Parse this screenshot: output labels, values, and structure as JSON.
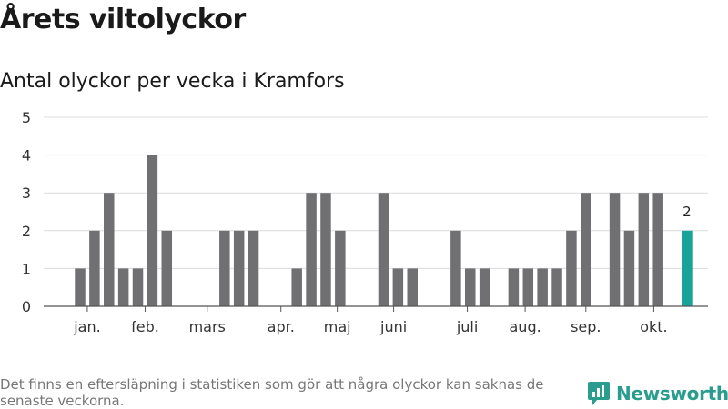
{
  "title": "Årets viltolyckor",
  "subtitle": "Antal olyckor per vecka i Kramfors",
  "footnote": "Det finns en eftersläpning i statistiken som gör att några olyckor kan saknas de senaste veckorna.",
  "brand": {
    "name": "Newsworthy",
    "color": "#2a9d8f"
  },
  "colors": {
    "bar": "#707073",
    "highlight": "#17a39a",
    "grid": "#dcdcdc",
    "axis": "#555555"
  },
  "chart_data": {
    "type": "bar",
    "title": "Antal olyckor per vecka i Kramfors",
    "xlabel": "",
    "ylabel": "",
    "ylim": [
      0,
      5
    ],
    "yticks": [
      0,
      1,
      2,
      3,
      4,
      5
    ],
    "weeks": [
      1,
      2,
      3,
      4,
      5,
      6,
      7,
      8,
      9,
      10,
      11,
      12,
      13,
      14,
      15,
      16,
      17,
      18,
      19,
      20,
      21,
      22,
      23,
      24,
      25,
      26,
      27,
      28,
      29,
      30,
      31,
      32,
      33,
      34,
      35,
      36,
      37,
      38,
      39,
      40,
      41,
      42,
      43
    ],
    "values": [
      1,
      2,
      3,
      1,
      1,
      4,
      2,
      0,
      0,
      0,
      2,
      2,
      2,
      0,
      0,
      1,
      3,
      3,
      2,
      0,
      0,
      3,
      1,
      1,
      0,
      0,
      2,
      1,
      1,
      0,
      1,
      1,
      1,
      1,
      2,
      3,
      0,
      3,
      2,
      3,
      3,
      0,
      2
    ],
    "highlight_index": 42,
    "highlight_label": "2",
    "month_labels": [
      {
        "label": "jan.",
        "week": 1.5
      },
      {
        "label": "feb.",
        "week": 5.5
      },
      {
        "label": "mars",
        "week": 9.8
      },
      {
        "label": "apr.",
        "week": 14.9
      },
      {
        "label": "maj",
        "week": 18.8
      },
      {
        "label": "juni",
        "week": 22.7
      },
      {
        "label": "juli",
        "week": 27.8
      },
      {
        "label": "aug.",
        "week": 31.8
      },
      {
        "label": "sep.",
        "week": 36.0
      },
      {
        "label": "okt.",
        "week": 40.7
      }
    ]
  }
}
